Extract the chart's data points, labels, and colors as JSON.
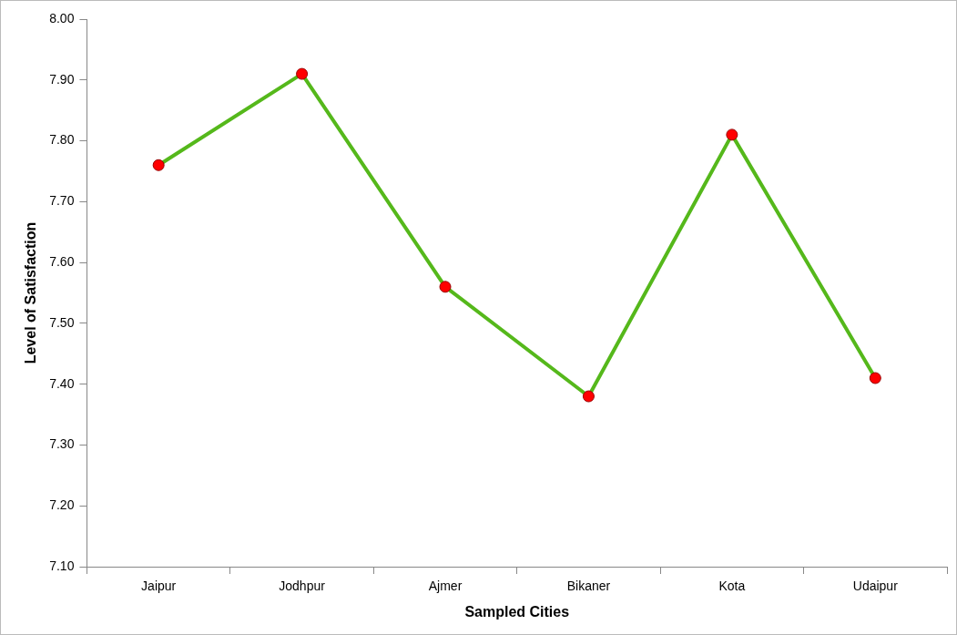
{
  "chart_data": {
    "type": "line",
    "xlabel": "Sampled Cities",
    "ylabel": "Level of Satisfaction",
    "categories": [
      "Jaipur",
      "Jodhpur",
      "Ajmer",
      "Bikaner",
      "Kota",
      "Udaipur"
    ],
    "series": [
      {
        "color": "#55b81b",
        "colors": [
          "#ff0000",
          "#ff0000",
          "#ff0000",
          "#ff0000",
          "#ff0000",
          "#ff0000"
        ],
        "values": [
          7.76,
          7.91,
          7.56,
          7.38,
          7.81,
          7.41
        ]
      }
    ],
    "ylim": [
      7.1,
      8.0
    ],
    "yticks": [
      {
        "value": 7.1,
        "label": "7.10"
      },
      {
        "value": 7.2,
        "label": "7.20"
      },
      {
        "value": 7.3,
        "label": "7.30"
      },
      {
        "value": 7.4,
        "label": "7.40"
      },
      {
        "value": 7.5,
        "label": "7.50"
      },
      {
        "value": 7.6,
        "label": "7.60"
      },
      {
        "value": 7.7,
        "label": "7.70"
      },
      {
        "value": 7.8,
        "label": "7.80"
      },
      {
        "value": 7.9,
        "label": "7.90"
      },
      {
        "value": 8.0,
        "label": "8.00"
      }
    ],
    "marker": "circle",
    "line_style": "solid",
    "grid": false,
    "legend": false
  }
}
